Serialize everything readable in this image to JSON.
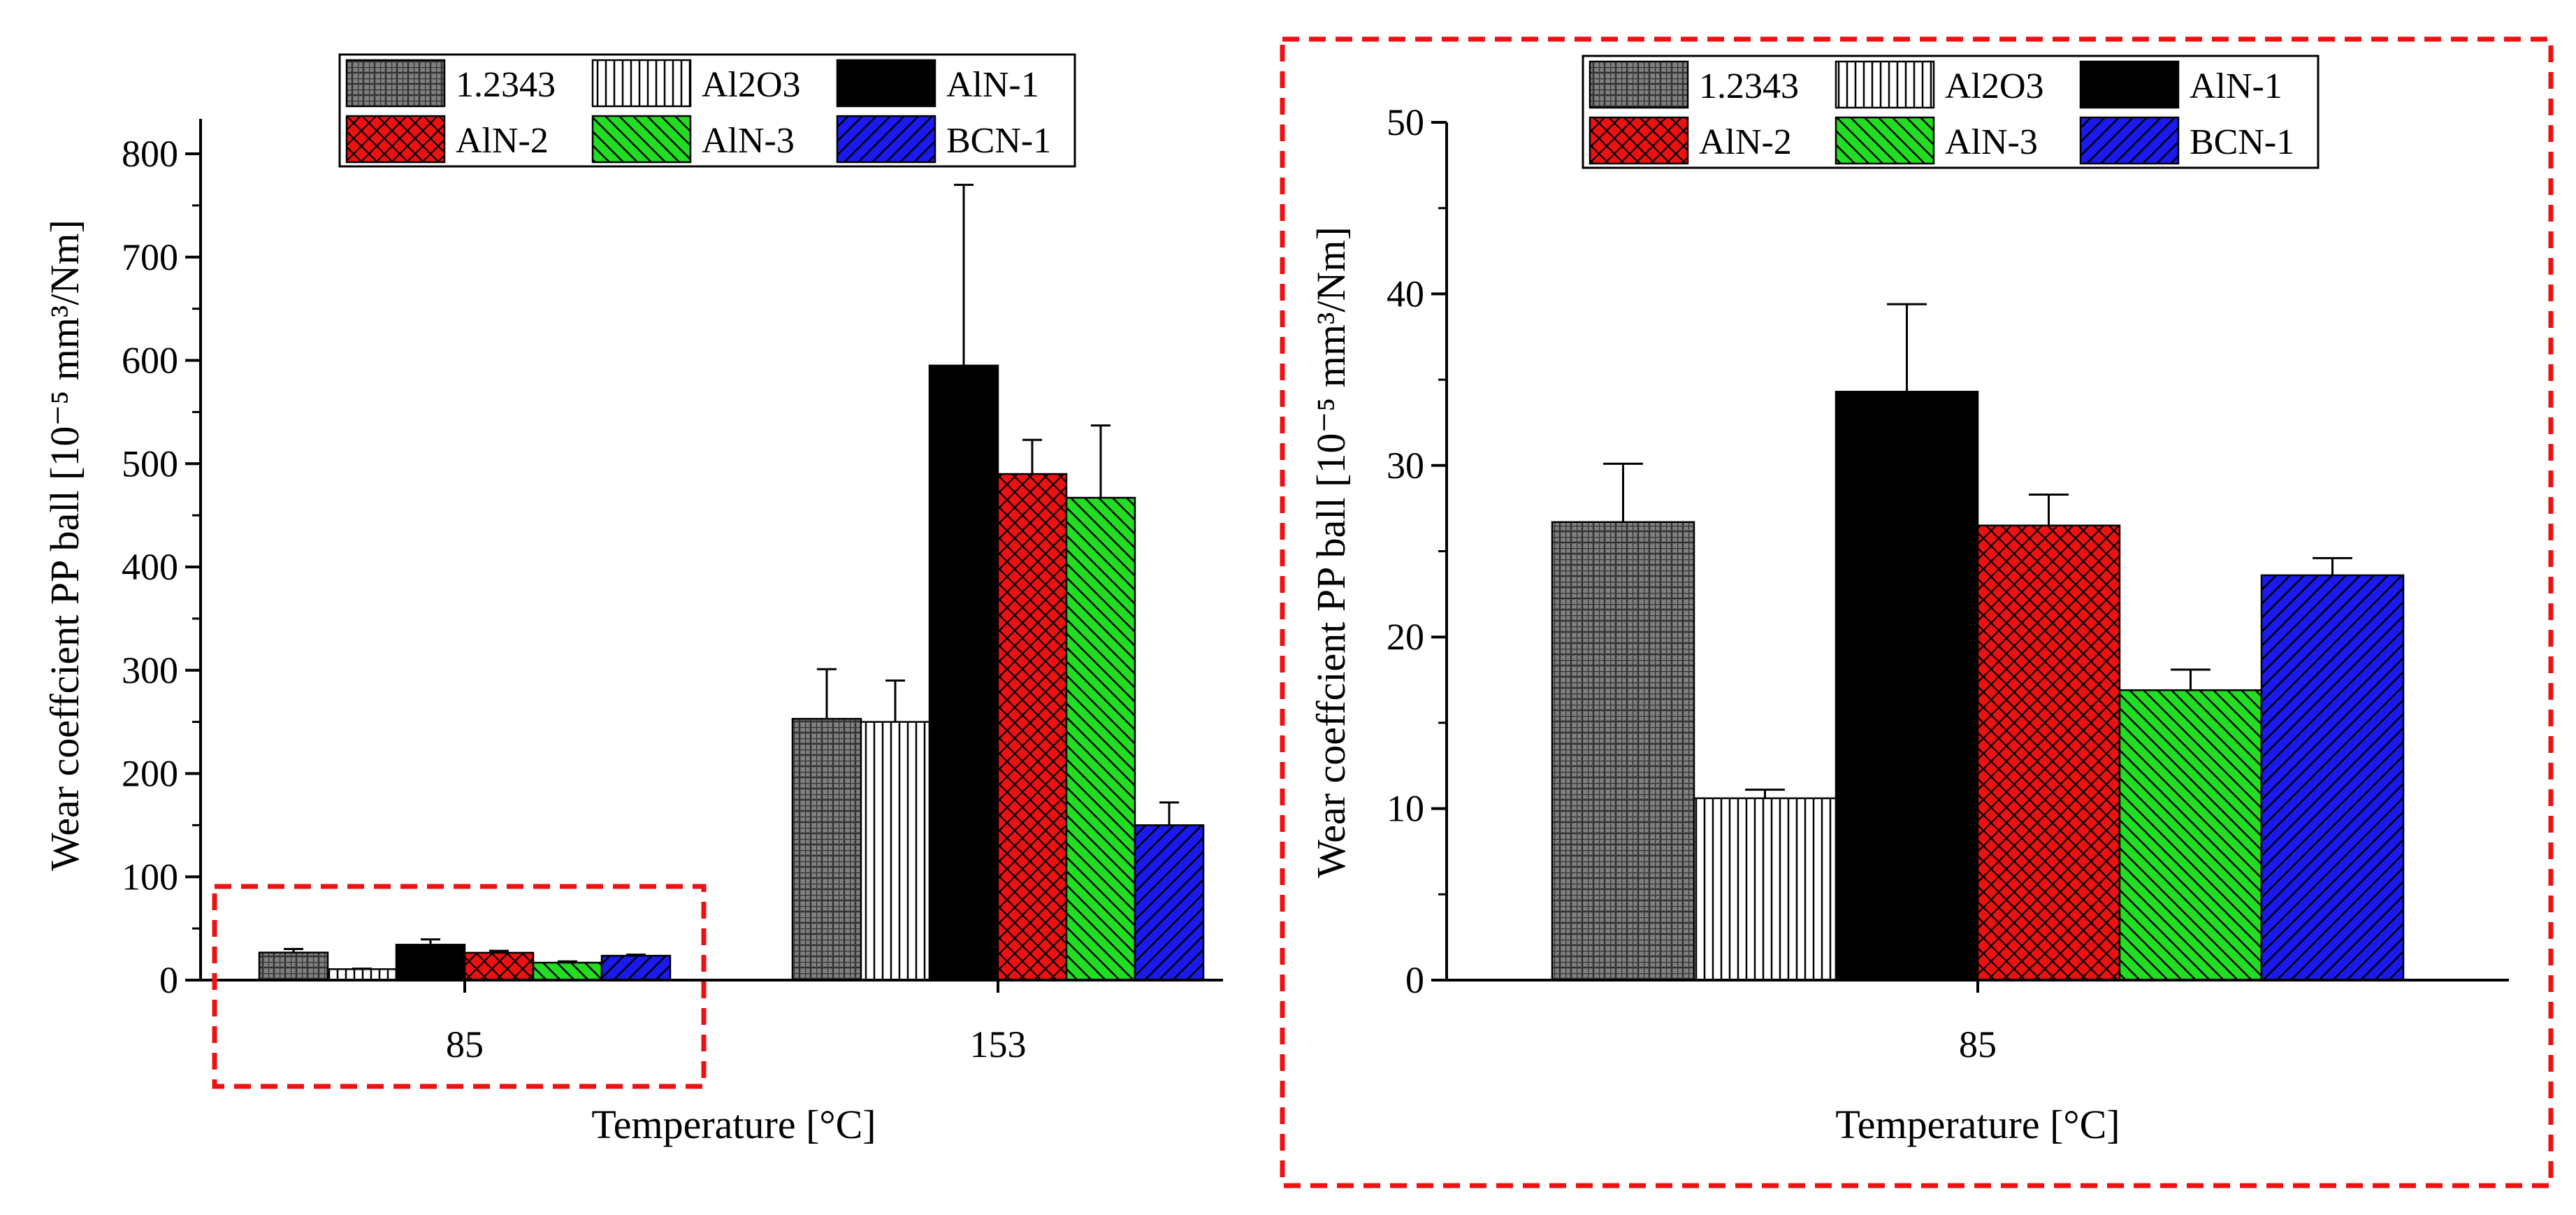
{
  "chart_data": [
    {
      "type": "bar",
      "xlabel": "Temperature [°C]",
      "ylabel": "Wear coeffcient PP ball [10⁻⁵ mm³/Nm]",
      "ylim": [
        0,
        800
      ],
      "yticks": [
        "0",
        "100",
        "200",
        "300",
        "400",
        "500",
        "600",
        "700",
        "800"
      ],
      "categories": [
        "85",
        "153"
      ],
      "legend_position": "top",
      "series": [
        {
          "name": "1.2343",
          "values": [
            26.7,
            253
          ],
          "errors": [
            3.4,
            48
          ]
        },
        {
          "name": "Al2O3",
          "values": [
            10.6,
            250
          ],
          "errors": [
            0.5,
            40
          ]
        },
        {
          "name": "AlN-1",
          "values": [
            34.3,
            595
          ],
          "errors": [
            5.1,
            175
          ]
        },
        {
          "name": "AlN-2",
          "values": [
            26.5,
            490
          ],
          "errors": [
            1.8,
            33
          ]
        },
        {
          "name": "AlN-3",
          "values": [
            16.9,
            467
          ],
          "errors": [
            1.2,
            70
          ]
        },
        {
          "name": "BCN-1",
          "values": [
            23.6,
            150
          ],
          "errors": [
            1.0,
            22
          ]
        }
      ],
      "annotation": "dashed red box around the 85 °C group"
    },
    {
      "type": "bar",
      "xlabel": "Temperature [°C]",
      "ylabel": "Wear coeffcient PP ball [10⁻⁵ mm³/Nm]",
      "ylim": [
        0,
        50
      ],
      "yticks": [
        "0",
        "10",
        "20",
        "30",
        "40",
        "50"
      ],
      "categories": [
        "85"
      ],
      "legend_position": "top",
      "series": [
        {
          "name": "1.2343",
          "values": [
            26.7
          ],
          "errors": [
            3.4
          ]
        },
        {
          "name": "Al2O3",
          "values": [
            10.6
          ],
          "errors": [
            0.5
          ]
        },
        {
          "name": "AlN-1",
          "values": [
            34.3
          ],
          "errors": [
            5.1
          ]
        },
        {
          "name": "AlN-2",
          "values": [
            26.5
          ],
          "errors": [
            1.8
          ]
        },
        {
          "name": "AlN-3",
          "values": [
            16.9
          ],
          "errors": [
            1.2
          ]
        },
        {
          "name": "BCN-1",
          "values": [
            23.6
          ],
          "errors": [
            1.0
          ]
        }
      ],
      "annotation": "zoomed view of the 85 °C group, framed by dashed red box"
    }
  ],
  "series_style": {
    "1.2343": {
      "fill": "#777777",
      "pattern": "grid"
    },
    "Al2O3": {
      "fill": "#ffffff",
      "pattern": "vertical"
    },
    "AlN-1": {
      "fill": "#000000",
      "pattern": "none"
    },
    "AlN-2": {
      "fill": "#ee1111",
      "pattern": "crosshatch"
    },
    "AlN-3": {
      "fill": "#22dd22",
      "pattern": "diag-down"
    },
    "BCN-1": {
      "fill": "#1a1aee",
      "pattern": "diag-up"
    }
  },
  "annotation_color": "#ee1111"
}
